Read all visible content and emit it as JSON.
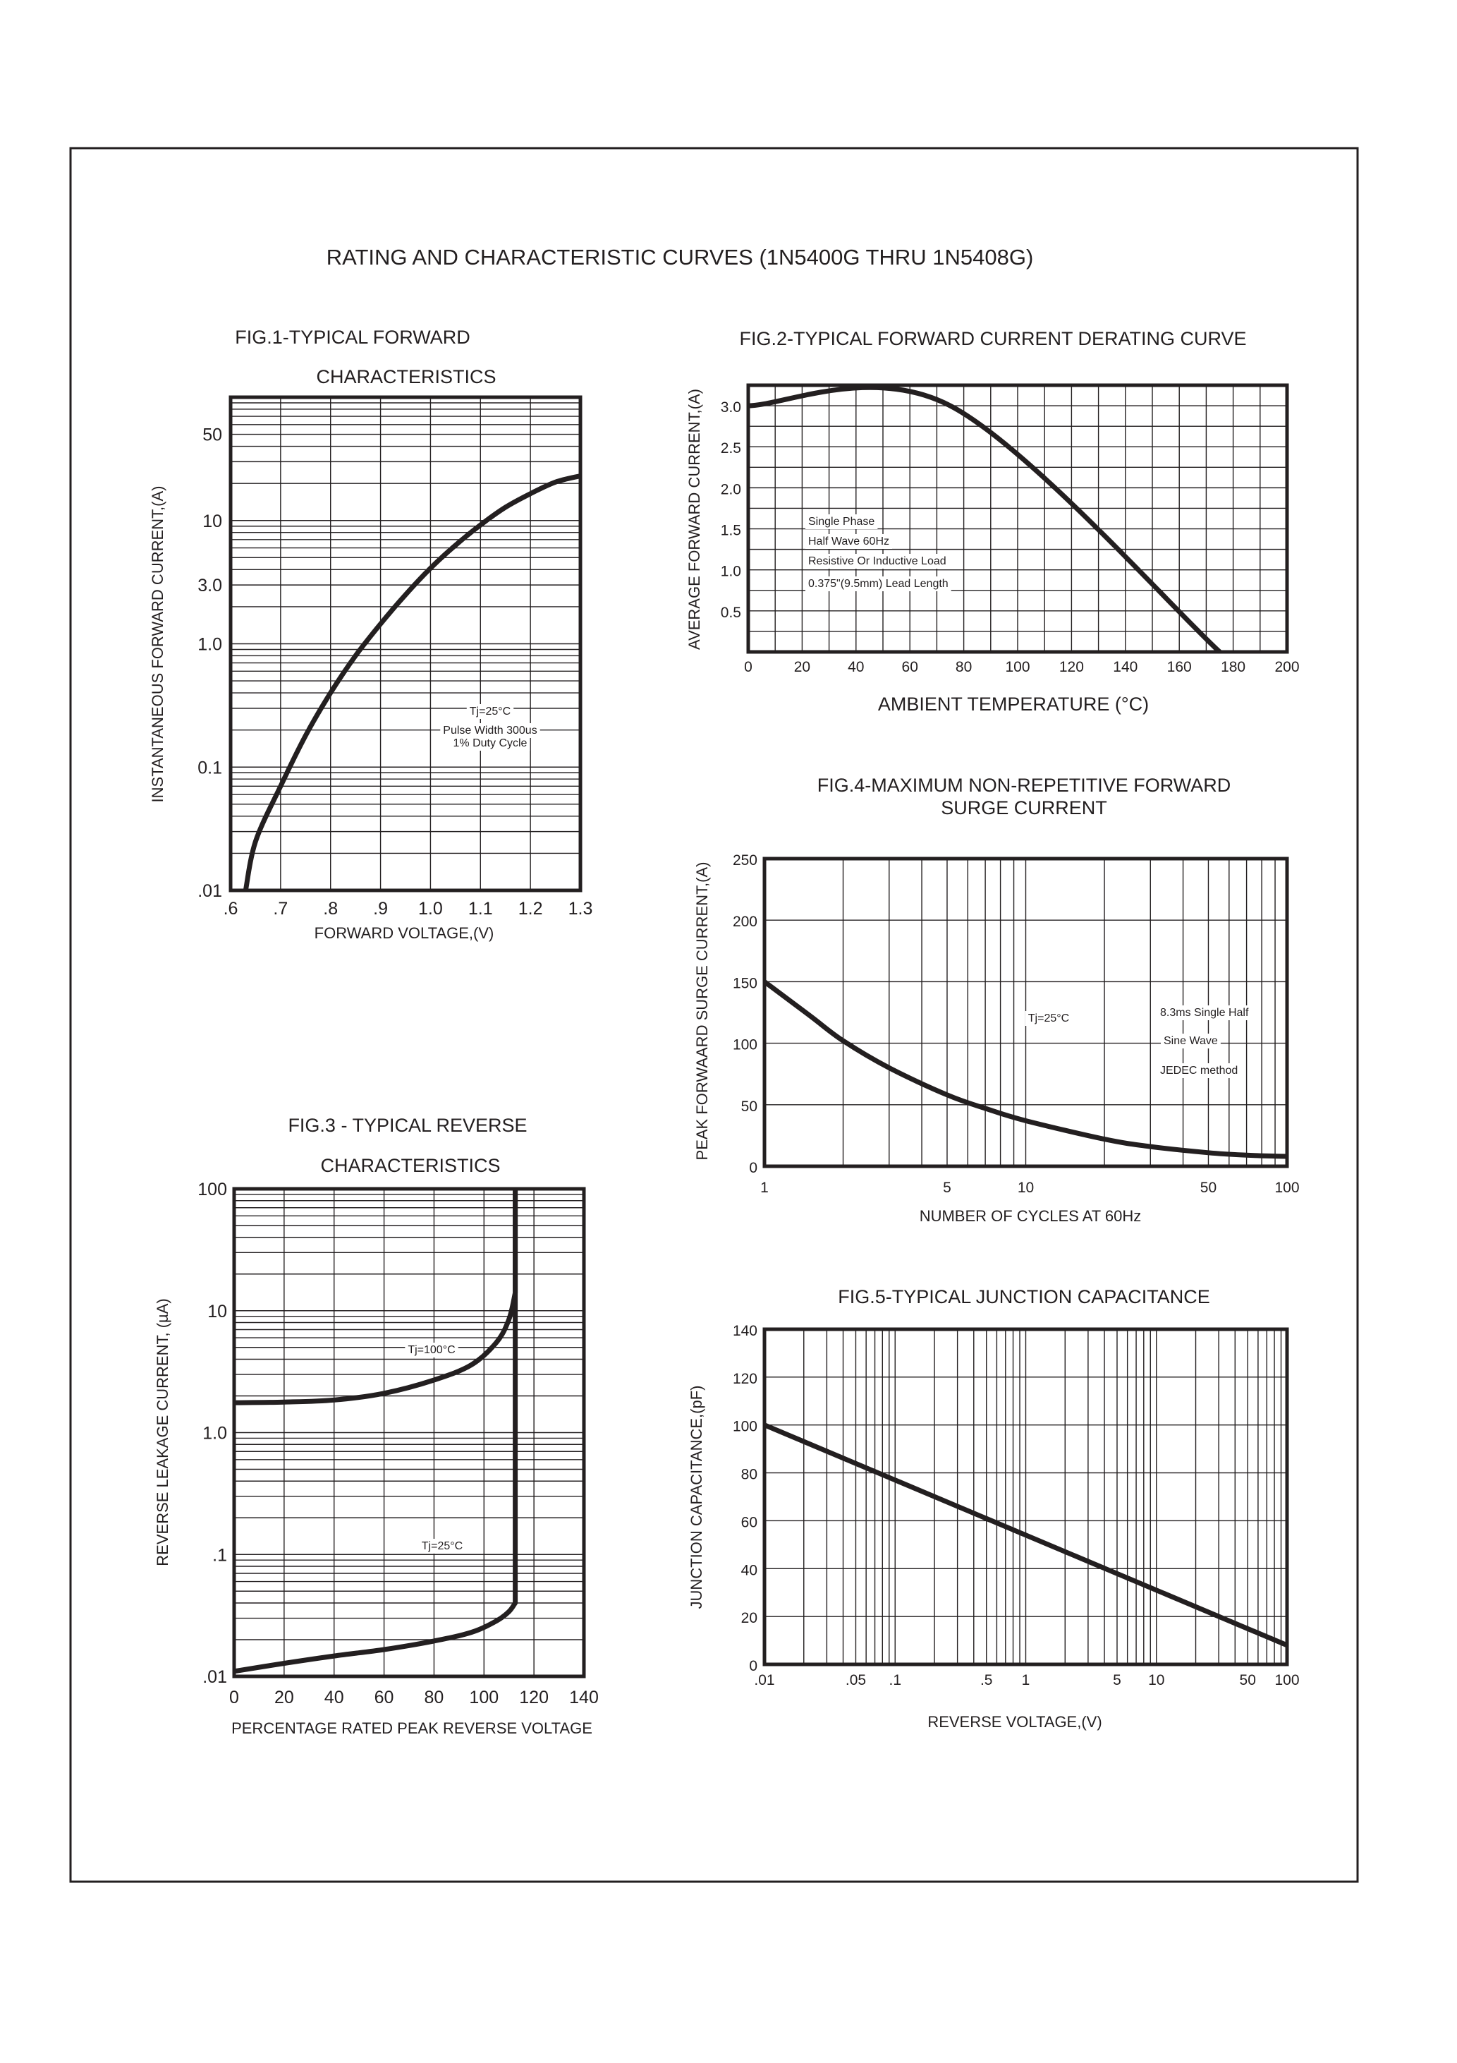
{
  "page_title": "RATING AND CHARACTERISTIC CURVES (1N5400G THRU 1N5408G)",
  "chart_data": [
    {
      "type": "line",
      "title_lines": [
        "FIG.1-TYPICAL FORWARD",
        "CHARACTERISTICS"
      ],
      "xlabel": "FORWARD VOLTAGE,(V)",
      "ylabel": "INSTANTANEOUS FORWARD CURRENT,(A)",
      "xscale": "linear",
      "yscale": "log",
      "xlim": [
        0.6,
        1.3
      ],
      "ylim": [
        0.01,
        100
      ],
      "grid": true,
      "xticks": [
        {
          "value": 0.6,
          "label": ".6"
        },
        {
          "value": 0.7,
          "label": ".7"
        },
        {
          "value": 0.8,
          "label": ".8"
        },
        {
          "value": 0.9,
          "label": ".9"
        },
        {
          "value": 1.0,
          "label": "1.0"
        },
        {
          "value": 1.1,
          "label": "1.1"
        },
        {
          "value": 1.2,
          "label": "1.2"
        },
        {
          "value": 1.3,
          "label": "1.3"
        }
      ],
      "yticks": [
        {
          "value": 0.01,
          "label": ".01"
        },
        {
          "value": 0.1,
          "label": "0.1"
        },
        {
          "value": 1,
          "label": "1.0"
        },
        {
          "value": 3,
          "label": "3.0"
        },
        {
          "value": 10,
          "label": "10"
        },
        {
          "value": 50,
          "label": "50"
        }
      ],
      "annotations": [
        "Tj=25°C",
        "Pulse Width 300us",
        "1% Duty Cycle"
      ],
      "series": [
        {
          "x": [
            0.63,
            0.65,
            0.7,
            0.75,
            0.8,
            0.85,
            0.9,
            0.95,
            1.0,
            1.05,
            1.1,
            1.15,
            1.2,
            1.25,
            1.3
          ],
          "y": [
            0.01,
            0.025,
            0.07,
            0.18,
            0.4,
            0.8,
            1.45,
            2.5,
            4.1,
            6.3,
            9.2,
            12.8,
            16.5,
            20.5,
            23
          ]
        }
      ]
    },
    {
      "type": "line",
      "title_lines": [
        "FIG.2-TYPICAL FORWARD CURRENT DERATING CURVE"
      ],
      "xlabel": "AMBIENT TEMPERATURE (°C)",
      "ylabel": "AVERAGE FORWARD CURRENT,(A)",
      "xscale": "linear",
      "yscale": "linear",
      "xlim": [
        0,
        200
      ],
      "ylim": [
        0,
        3.25
      ],
      "grid": true,
      "xticks": [
        {
          "value": 0,
          "label": "0"
        },
        {
          "value": 20,
          "label": "20"
        },
        {
          "value": 40,
          "label": "40"
        },
        {
          "value": 60,
          "label": "60"
        },
        {
          "value": 80,
          "label": "80"
        },
        {
          "value": 100,
          "label": "100"
        },
        {
          "value": 120,
          "label": "120"
        },
        {
          "value": 140,
          "label": "140"
        },
        {
          "value": 160,
          "label": "160"
        },
        {
          "value": 180,
          "label": "180"
        },
        {
          "value": 200,
          "label": "200"
        }
      ],
      "yticks": [
        {
          "value": 0.5,
          "label": "0.5"
        },
        {
          "value": 1.0,
          "label": "1.0"
        },
        {
          "value": 1.5,
          "label": "1.5"
        },
        {
          "value": 2.0,
          "label": "2.0"
        },
        {
          "value": 2.5,
          "label": "2.5"
        },
        {
          "value": 3.0,
          "label": "3.0"
        }
      ],
      "annotations": [
        "Single Phase",
        "Half Wave 60Hz",
        "Resistive Or Inductive Load",
        "0.375\"(9.5mm) Lead Length"
      ],
      "series": [
        {
          "x": [
            0,
            75,
            175
          ],
          "y": [
            3.0,
            3.0,
            0
          ]
        }
      ]
    },
    {
      "type": "line",
      "title_lines": [
        "FIG.3 - TYPICAL REVERSE",
        "CHARACTERISTICS"
      ],
      "xlabel": "PERCENTAGE RATED PEAK REVERSE VOLTAGE",
      "ylabel": "REVERSE LEAKAGE CURRENT, (µA)",
      "xscale": "linear",
      "yscale": "log",
      "xlim": [
        0,
        140
      ],
      "ylim": [
        0.01,
        100
      ],
      "grid": true,
      "xticks": [
        {
          "value": 0,
          "label": "0"
        },
        {
          "value": 20,
          "label": "20"
        },
        {
          "value": 40,
          "label": "40"
        },
        {
          "value": 60,
          "label": "60"
        },
        {
          "value": 80,
          "label": "80"
        },
        {
          "value": 100,
          "label": "100"
        },
        {
          "value": 120,
          "label": "120"
        },
        {
          "value": 140,
          "label": "140"
        }
      ],
      "yticks": [
        {
          "value": 0.01,
          "label": ".01"
        },
        {
          "value": 0.1,
          "label": ".1"
        },
        {
          "value": 1,
          "label": "1.0"
        },
        {
          "value": 10,
          "label": "10"
        },
        {
          "value": 100,
          "label": "100"
        }
      ],
      "annotations": [
        "Tj=100°C",
        "Tj=25°C"
      ],
      "series": [
        {
          "name": "Tj=100°C",
          "x": [
            0,
            20,
            40,
            60,
            80,
            95,
            105,
            110,
            112.5,
            112.5
          ],
          "y": [
            1.76,
            1.78,
            1.85,
            2.1,
            2.7,
            3.6,
            5.5,
            8.5,
            14,
            100
          ]
        },
        {
          "name": "Tj=25°C",
          "x": [
            0,
            20,
            40,
            60,
            80,
            95,
            105,
            110,
            112.5,
            112.5
          ],
          "y": [
            0.011,
            0.0128,
            0.0147,
            0.0166,
            0.0195,
            0.023,
            0.0285,
            0.034,
            0.04,
            100
          ]
        }
      ]
    },
    {
      "type": "line",
      "title_lines": [
        "FIG.4-MAXIMUM NON-REPETITIVE FORWARD",
        "SURGE CURRENT"
      ],
      "xlabel": "NUMBER OF CYCLES AT 60Hz",
      "ylabel": "PEAK FORWAARD SURGE CURRENT,(A)",
      "xscale": "log",
      "yscale": "linear",
      "xlim": [
        1,
        100
      ],
      "ylim": [
        0,
        250
      ],
      "grid": true,
      "xticks": [
        {
          "value": 1,
          "label": "1"
        },
        {
          "value": 5,
          "label": "5"
        },
        {
          "value": 10,
          "label": "10"
        },
        {
          "value": 50,
          "label": "50"
        },
        {
          "value": 100,
          "label": "100"
        }
      ],
      "yticks": [
        {
          "value": 0,
          "label": "0"
        },
        {
          "value": 50,
          "label": "50"
        },
        {
          "value": 100,
          "label": "100"
        },
        {
          "value": 150,
          "label": "150"
        },
        {
          "value": 200,
          "label": "200"
        },
        {
          "value": 250,
          "label": "250"
        }
      ],
      "annotations": [
        "Tj=25°C",
        "8.3ms Single Half",
        "Sine Wave",
        "JEDEC method"
      ],
      "series": [
        {
          "x": [
            1,
            1.5,
            2,
            3,
            5,
            7,
            10,
            20,
            30,
            50,
            70,
            100
          ],
          "y": [
            150,
            122,
            102,
            80,
            58,
            47,
            37,
            22,
            16,
            11,
            9,
            8
          ]
        }
      ]
    },
    {
      "type": "line",
      "title_lines": [
        "FIG.5-TYPICAL JUNCTION CAPACITANCE"
      ],
      "xlabel": "REVERSE VOLTAGE,(V)",
      "ylabel": "JUNCTION CAPACITANCE,(pF)",
      "xscale": "log",
      "yscale": "linear",
      "xlim": [
        0.01,
        100
      ],
      "ylim": [
        0,
        140
      ],
      "grid": true,
      "xticks": [
        {
          "value": 0.01,
          "label": ".01"
        },
        {
          "value": 0.05,
          "label": ".05"
        },
        {
          "value": 0.1,
          "label": ".1"
        },
        {
          "value": 0.5,
          "label": ".5"
        },
        {
          "value": 1,
          "label": "1"
        },
        {
          "value": 5,
          "label": "5"
        },
        {
          "value": 10,
          "label": "10"
        },
        {
          "value": 50,
          "label": "50"
        },
        {
          "value": 100,
          "label": "100"
        }
      ],
      "yticks": [
        {
          "value": 0,
          "label": "0"
        },
        {
          "value": 20,
          "label": "20"
        },
        {
          "value": 40,
          "label": "40"
        },
        {
          "value": 60,
          "label": "60"
        },
        {
          "value": 80,
          "label": "80"
        },
        {
          "value": 100,
          "label": "100"
        },
        {
          "value": 120,
          "label": "120"
        },
        {
          "value": 140,
          "label": "140"
        }
      ],
      "annotations": [],
      "series": [
        {
          "x": [
            0.01,
            100
          ],
          "y": [
            100,
            8
          ]
        }
      ]
    }
  ]
}
